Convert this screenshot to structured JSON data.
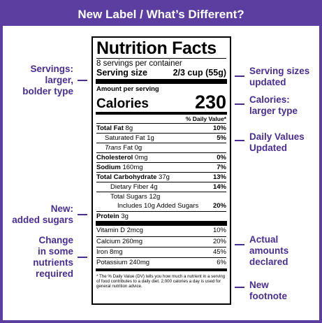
{
  "banner": {
    "title": "New Label / What’s Different?"
  },
  "callouts": {
    "servings": [
      "Servings:",
      "larger,",
      "bolder type"
    ],
    "serving_sizes": [
      "Serving sizes",
      "updated"
    ],
    "calories": [
      "Calories:",
      "larger type"
    ],
    "daily_values": [
      "Daily Values",
      "Updated"
    ],
    "added_sugars": [
      "New:",
      "added sugars"
    ],
    "nutrients": [
      "Change",
      "in some",
      "nutrients",
      "required"
    ],
    "amounts": [
      "Actual",
      "amounts",
      "declared"
    ],
    "footnote": [
      "New",
      "footnote"
    ]
  },
  "label": {
    "title": "Nutrition Facts",
    "servings_per_container": "8 servings per container",
    "serving_size_label": "Serving size",
    "serving_size_value": "2/3 cup (55g)",
    "amount_per_serving": "Amount per serving",
    "calories_label": "Calories",
    "calories_value": "230",
    "dv_header": "% Daily Value*",
    "nutrients": [
      {
        "name": "Total Fat",
        "amount": "8g",
        "pct": "10%"
      },
      {
        "name": "Saturated Fat",
        "amount": "1g",
        "pct": "5%"
      },
      {
        "name": "Trans",
        "amount": "Fat 0g",
        "pct": ""
      },
      {
        "name": "Cholesterol",
        "amount": "0mg",
        "pct": "0%"
      },
      {
        "name": "Sodium",
        "amount": "160mg",
        "pct": "7%"
      },
      {
        "name": "Total Carbohydrate",
        "amount": "37g",
        "pct": "13%"
      },
      {
        "name": "Dietary Fiber",
        "amount": "4g",
        "pct": "14%"
      },
      {
        "name": "Total Sugars",
        "amount": "12g",
        "pct": ""
      },
      {
        "name": "Includes 10g Added Sugars",
        "amount": "",
        "pct": "20%"
      },
      {
        "name": "Protein",
        "amount": "3g",
        "pct": ""
      }
    ],
    "vitamins": [
      {
        "name": "Vitamin D 2mcg",
        "pct": "10%"
      },
      {
        "name": "Calcium 260mg",
        "pct": "20%"
      },
      {
        "name": "Iron 8mg",
        "pct": "45%"
      },
      {
        "name": "Potassium 240mg",
        "pct": "6%"
      }
    ],
    "footnote": "* The % Daily Value (DV) tells you how much a nutrient in a serving of food contributes to a daily diet. 2,000 calories a day is used for general nutrition advice."
  },
  "colors": {
    "accent": "#5b3ea0",
    "callout_text": "#4a2d91"
  }
}
